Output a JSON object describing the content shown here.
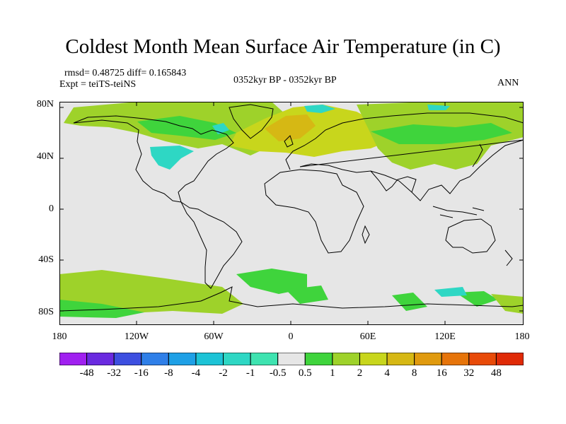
{
  "header": {
    "title": "Coldest Month Mean Surface Air Temperature (in C)",
    "stats": "rmsd= 0.48725 diff= 0.165843",
    "experiment": "Expt = teiTS-teiNS",
    "period": "0352kyr BP - 0352kyr BP",
    "season": "ANN"
  },
  "axes": {
    "y_ticks": [
      "80N",
      "40N",
      "0",
      "40S",
      "80S"
    ],
    "x_ticks": [
      "180",
      "120W",
      "60W",
      "0",
      "60E",
      "120E",
      "180"
    ]
  },
  "colorbar": {
    "labels": [
      "-48",
      "-32",
      "-16",
      "-8",
      "-4",
      "-2",
      "-1",
      "-0.5",
      "0.5",
      "1",
      "2",
      "4",
      "8",
      "16",
      "32",
      "48"
    ],
    "colors": [
      "#a020f0",
      "#6a2ae0",
      "#3d4fe0",
      "#2f7fe8",
      "#1ea0e6",
      "#1cc3d6",
      "#2ed7c4",
      "#3ee3b0",
      "#e6e6e6",
      "#3fd43c",
      "#9ed22a",
      "#c8d61c",
      "#d6b814",
      "#e09a0e",
      "#e6740a",
      "#e84a08",
      "#e02a06"
    ]
  },
  "legend_colors": {
    "background": "#e6e6e6",
    "coast": "#000000",
    "light_green": "#9ed22a",
    "green": "#3fd43c",
    "cyan": "#2ed7c4",
    "yellow": "#c8d61c",
    "orange": "#d6b814"
  }
}
